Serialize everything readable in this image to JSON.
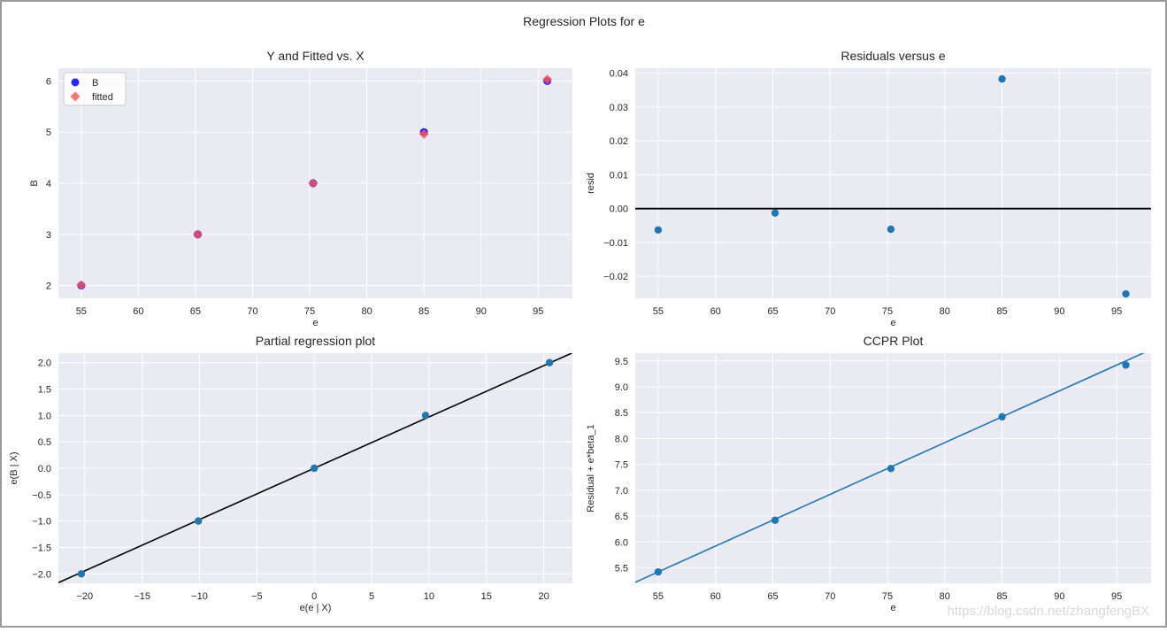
{
  "figure": {
    "suptitle": "Regression Plots for e",
    "watermark": "https://blog.csdn.net/zhangfengBX"
  },
  "colors": {
    "panel_bg": "#EAEAF2",
    "grid": "#FFFFFF",
    "point": "#1F77B4",
    "data_blue": "#0000FF",
    "fitted_red": "#FF5555",
    "line_black": "#000000",
    "text": "#262626",
    "frame": "#9a9a9a"
  },
  "chart_data": [
    {
      "id": "fitted",
      "type": "scatter",
      "title": "Y and Fitted vs. X",
      "xlabel": "e",
      "ylabel": "B",
      "xlim": [
        53,
        98
      ],
      "ylim": [
        1.75,
        6.25
      ],
      "xticks": [
        55,
        60,
        65,
        70,
        75,
        80,
        85,
        90,
        95
      ],
      "yticks": [
        2,
        3,
        4,
        5,
        6
      ],
      "legend": {
        "placement": "upper-left",
        "entries": [
          "B",
          "fitted"
        ]
      },
      "series": [
        {
          "name": "B",
          "marker": "circle",
          "x": [
            55,
            65.2,
            75.3,
            85,
            95.8
          ],
          "y": [
            2,
            3,
            4,
            5,
            6
          ]
        },
        {
          "name": "fitted",
          "marker": "diamond",
          "x": [
            55,
            65.2,
            75.3,
            85,
            95.8
          ],
          "y": [
            2.01,
            3.0,
            4.0,
            4.96,
            6.03
          ]
        }
      ]
    },
    {
      "id": "resid",
      "type": "scatter",
      "title": "Residuals versus e",
      "xlabel": "e",
      "ylabel": "resid",
      "xlim": [
        53,
        98
      ],
      "ylim": [
        -0.0265,
        0.0415
      ],
      "xticks": [
        55,
        60,
        65,
        70,
        75,
        80,
        85,
        90,
        95
      ],
      "yticks": [
        -0.02,
        -0.01,
        0.0,
        0.01,
        0.02,
        0.03,
        0.04
      ],
      "ytick_labels": [
        "−0.02",
        "−0.01",
        "0.00",
        "0.01",
        "0.02",
        "0.03",
        "0.04"
      ],
      "hline": 0,
      "series": [
        {
          "name": "resid",
          "x": [
            55,
            65.2,
            75.3,
            85,
            95.8
          ],
          "y": [
            -0.0063,
            -0.0013,
            -0.0061,
            0.0383,
            -0.0252
          ]
        }
      ]
    },
    {
      "id": "partreg",
      "type": "scatter",
      "title": "Partial regression plot",
      "xlabel": "e(e | X)",
      "ylabel": "e(B | X)",
      "xlim": [
        -22.3,
        22.5
      ],
      "ylim": [
        -2.18,
        2.18
      ],
      "xticks": [
        -20,
        -15,
        -10,
        -5,
        0,
        5,
        10,
        15,
        20
      ],
      "xtick_labels": [
        "−20",
        "−15",
        "−10",
        "−5",
        "0",
        "5",
        "10",
        "15",
        "20"
      ],
      "yticks": [
        -2.0,
        -1.5,
        -1.0,
        -0.5,
        0.0,
        0.5,
        1.0,
        1.5,
        2.0
      ],
      "ytick_labels": [
        "−2.0",
        "−1.5",
        "−1.0",
        "−0.5",
        "0.0",
        "0.5",
        "1.0",
        "1.5",
        "2.0"
      ],
      "fit_line": {
        "slope": 0.0972,
        "intercept": 0.0
      },
      "series": [
        {
          "name": "points",
          "x": [
            -20.3,
            -10.1,
            0,
            9.7,
            20.5
          ],
          "y": [
            -2.0,
            -1.0,
            0.0,
            1.0,
            2.0
          ]
        }
      ]
    },
    {
      "id": "ccpr",
      "type": "scatter",
      "title": "CCPR Plot",
      "xlabel": "e",
      "ylabel": "Residual + e*beta_1",
      "xlim": [
        53,
        98
      ],
      "ylim": [
        5.2,
        9.65
      ],
      "xticks": [
        55,
        60,
        65,
        70,
        75,
        80,
        85,
        90,
        95
      ],
      "yticks": [
        5.5,
        6.0,
        6.5,
        7.0,
        7.5,
        8.0,
        8.5,
        9.0,
        9.5
      ],
      "ytick_labels": [
        "5.5",
        "6.0",
        "6.5",
        "7.0",
        "7.5",
        "8.0",
        "8.5",
        "9.0",
        "9.5"
      ],
      "fit_line": {
        "slope": 0.1,
        "intercept": -0.08
      },
      "series": [
        {
          "name": "points",
          "x": [
            55,
            65.2,
            75.3,
            85,
            95.8
          ],
          "y": [
            5.42,
            6.42,
            7.42,
            8.42,
            9.42
          ]
        }
      ]
    }
  ]
}
